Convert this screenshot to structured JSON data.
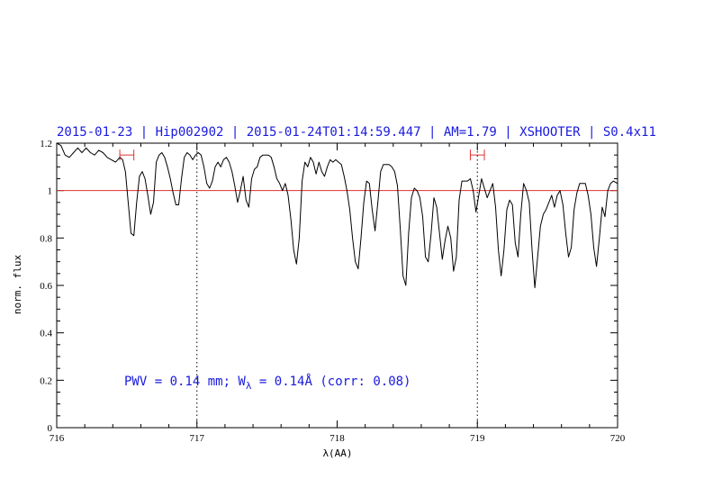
{
  "chart_data": {
    "type": "line",
    "title": "2015-01-23 | Hip002902 | 2015-01-24T01:14:59.447 | AM=1.79 | XSHOOTER | S0.4x11",
    "xlabel": "λ(AA)",
    "ylabel": "norm. flux",
    "xlim": [
      716,
      720
    ],
    "ylim": [
      0,
      1.2
    ],
    "x_ticks": [
      716,
      717,
      718,
      719,
      720
    ],
    "x_tick_labels": [
      "716",
      "717",
      "718",
      "719",
      "720"
    ],
    "y_ticks": [
      0,
      0.2,
      0.4,
      0.6,
      0.8,
      1,
      1.2
    ],
    "y_tick_labels": [
      "0",
      "0.2",
      "0.4",
      "0.6",
      "0.8",
      "1",
      "1.2"
    ],
    "reference_line": {
      "y": 1.0,
      "color": "#e03030"
    },
    "vertical_markers": [
      717.0,
      719.0
    ],
    "range_markers": [
      {
        "x0": 716.45,
        "x1": 716.55,
        "y": 1.15,
        "color": "#e03030"
      },
      {
        "x0": 718.95,
        "x1": 719.05,
        "y": 1.15,
        "color": "#e03030"
      }
    ],
    "annotation": {
      "pwv_text": "PWV = 0.14 mm; W",
      "sub": "λ",
      "rest_text": " = 0.14Å (corr: 0.08)"
    },
    "series": [
      {
        "color": "#000000",
        "points": [
          [
            716.0,
            1.2
          ],
          [
            716.03,
            1.19
          ],
          [
            716.06,
            1.15
          ],
          [
            716.09,
            1.14
          ],
          [
            716.12,
            1.16
          ],
          [
            716.15,
            1.18
          ],
          [
            716.18,
            1.16
          ],
          [
            716.21,
            1.18
          ],
          [
            716.24,
            1.16
          ],
          [
            716.27,
            1.15
          ],
          [
            716.3,
            1.17
          ],
          [
            716.33,
            1.16
          ],
          [
            716.36,
            1.14
          ],
          [
            716.39,
            1.13
          ],
          [
            716.42,
            1.12
          ],
          [
            716.45,
            1.14
          ],
          [
            716.47,
            1.13
          ],
          [
            716.49,
            1.08
          ],
          [
            716.51,
            0.95
          ],
          [
            716.53,
            0.82
          ],
          [
            716.55,
            0.81
          ],
          [
            716.57,
            0.95
          ],
          [
            716.59,
            1.06
          ],
          [
            716.61,
            1.08
          ],
          [
            716.63,
            1.05
          ],
          [
            716.65,
            0.98
          ],
          [
            716.67,
            0.9
          ],
          [
            716.69,
            0.95
          ],
          [
            716.71,
            1.12
          ],
          [
            716.73,
            1.15
          ],
          [
            716.75,
            1.16
          ],
          [
            716.77,
            1.14
          ],
          [
            716.79,
            1.1
          ],
          [
            716.81,
            1.05
          ],
          [
            716.83,
            0.99
          ],
          [
            716.85,
            0.94
          ],
          [
            716.87,
            0.94
          ],
          [
            716.89,
            1.05
          ],
          [
            716.91,
            1.14
          ],
          [
            716.93,
            1.16
          ],
          [
            716.95,
            1.15
          ],
          [
            716.97,
            1.13
          ],
          [
            716.99,
            1.15
          ],
          [
            717.01,
            1.16
          ],
          [
            717.03,
            1.15
          ],
          [
            717.05,
            1.1
          ],
          [
            717.07,
            1.03
          ],
          [
            717.09,
            1.01
          ],
          [
            717.11,
            1.04
          ],
          [
            717.13,
            1.1
          ],
          [
            717.15,
            1.12
          ],
          [
            717.17,
            1.1
          ],
          [
            717.19,
            1.13
          ],
          [
            717.21,
            1.14
          ],
          [
            717.23,
            1.12
          ],
          [
            717.25,
            1.08
          ],
          [
            717.27,
            1.02
          ],
          [
            717.29,
            0.95
          ],
          [
            717.31,
            1.0
          ],
          [
            717.33,
            1.06
          ],
          [
            717.35,
            0.96
          ],
          [
            717.37,
            0.93
          ],
          [
            717.39,
            1.05
          ],
          [
            717.41,
            1.09
          ],
          [
            717.43,
            1.1
          ],
          [
            717.45,
            1.14
          ],
          [
            717.47,
            1.15
          ],
          [
            717.49,
            1.15
          ],
          [
            717.51,
            1.15
          ],
          [
            717.53,
            1.14
          ],
          [
            717.55,
            1.1
          ],
          [
            717.57,
            1.05
          ],
          [
            717.59,
            1.03
          ],
          [
            717.61,
            1.0
          ],
          [
            717.63,
            1.03
          ],
          [
            717.65,
            0.98
          ],
          [
            717.67,
            0.88
          ],
          [
            717.69,
            0.75
          ],
          [
            717.71,
            0.69
          ],
          [
            717.73,
            0.8
          ],
          [
            717.75,
            1.04
          ],
          [
            717.77,
            1.12
          ],
          [
            717.79,
            1.1
          ],
          [
            717.81,
            1.14
          ],
          [
            717.83,
            1.12
          ],
          [
            717.85,
            1.07
          ],
          [
            717.87,
            1.12
          ],
          [
            717.89,
            1.08
          ],
          [
            717.91,
            1.06
          ],
          [
            717.93,
            1.1
          ],
          [
            717.95,
            1.13
          ],
          [
            717.97,
            1.12
          ],
          [
            717.99,
            1.13
          ],
          [
            718.01,
            1.12
          ],
          [
            718.03,
            1.11
          ],
          [
            718.05,
            1.06
          ],
          [
            718.07,
            1.0
          ],
          [
            718.09,
            0.92
          ],
          [
            718.11,
            0.8
          ],
          [
            718.13,
            0.7
          ],
          [
            718.15,
            0.67
          ],
          [
            718.17,
            0.8
          ],
          [
            718.19,
            0.95
          ],
          [
            718.21,
            1.04
          ],
          [
            718.23,
            1.03
          ],
          [
            718.25,
            0.92
          ],
          [
            718.27,
            0.83
          ],
          [
            718.29,
            0.95
          ],
          [
            718.31,
            1.08
          ],
          [
            718.33,
            1.11
          ],
          [
            718.35,
            1.11
          ],
          [
            718.37,
            1.11
          ],
          [
            718.39,
            1.1
          ],
          [
            718.41,
            1.08
          ],
          [
            718.43,
            1.02
          ],
          [
            718.45,
            0.84
          ],
          [
            718.47,
            0.64
          ],
          [
            718.49,
            0.6
          ],
          [
            718.51,
            0.82
          ],
          [
            718.53,
            0.97
          ],
          [
            718.55,
            1.01
          ],
          [
            718.57,
            1.0
          ],
          [
            718.59,
            0.97
          ],
          [
            718.61,
            0.89
          ],
          [
            718.63,
            0.72
          ],
          [
            718.65,
            0.7
          ],
          [
            718.67,
            0.82
          ],
          [
            718.69,
            0.97
          ],
          [
            718.71,
            0.93
          ],
          [
            718.73,
            0.82
          ],
          [
            718.75,
            0.71
          ],
          [
            718.77,
            0.79
          ],
          [
            718.79,
            0.85
          ],
          [
            718.81,
            0.8
          ],
          [
            718.83,
            0.66
          ],
          [
            718.85,
            0.72
          ],
          [
            718.87,
            0.96
          ],
          [
            718.89,
            1.04
          ],
          [
            718.91,
            1.04
          ],
          [
            718.93,
            1.04
          ],
          [
            718.95,
            1.05
          ],
          [
            718.97,
            1.0
          ],
          [
            718.99,
            0.91
          ],
          [
            719.01,
            0.98
          ],
          [
            719.03,
            1.05
          ],
          [
            719.05,
            1.01
          ],
          [
            719.07,
            0.97
          ],
          [
            719.09,
            1.0
          ],
          [
            719.11,
            1.03
          ],
          [
            719.13,
            0.93
          ],
          [
            719.15,
            0.75
          ],
          [
            719.17,
            0.64
          ],
          [
            719.19,
            0.75
          ],
          [
            719.21,
            0.92
          ],
          [
            719.23,
            0.96
          ],
          [
            719.25,
            0.94
          ],
          [
            719.27,
            0.78
          ],
          [
            719.29,
            0.72
          ],
          [
            719.31,
            0.9
          ],
          [
            719.33,
            1.03
          ],
          [
            719.35,
            1.0
          ],
          [
            719.37,
            0.95
          ],
          [
            719.39,
            0.75
          ],
          [
            719.41,
            0.59
          ],
          [
            719.43,
            0.72
          ],
          [
            719.45,
            0.85
          ],
          [
            719.47,
            0.9
          ],
          [
            719.49,
            0.92
          ],
          [
            719.51,
            0.95
          ],
          [
            719.53,
            0.98
          ],
          [
            719.55,
            0.93
          ],
          [
            719.57,
            0.98
          ],
          [
            719.59,
            1.0
          ],
          [
            719.61,
            0.94
          ],
          [
            719.63,
            0.82
          ],
          [
            719.65,
            0.72
          ],
          [
            719.67,
            0.76
          ],
          [
            719.69,
            0.92
          ],
          [
            719.71,
            0.99
          ],
          [
            719.73,
            1.03
          ],
          [
            719.75,
            1.03
          ],
          [
            719.77,
            1.03
          ],
          [
            719.79,
            0.98
          ],
          [
            719.81,
            0.9
          ],
          [
            719.83,
            0.76
          ],
          [
            719.85,
            0.68
          ],
          [
            719.87,
            0.8
          ],
          [
            719.89,
            0.93
          ],
          [
            719.91,
            0.89
          ],
          [
            719.93,
            1.0
          ],
          [
            719.95,
            1.03
          ],
          [
            719.97,
            1.04
          ],
          [
            720.0,
            1.03
          ]
        ]
      }
    ]
  }
}
